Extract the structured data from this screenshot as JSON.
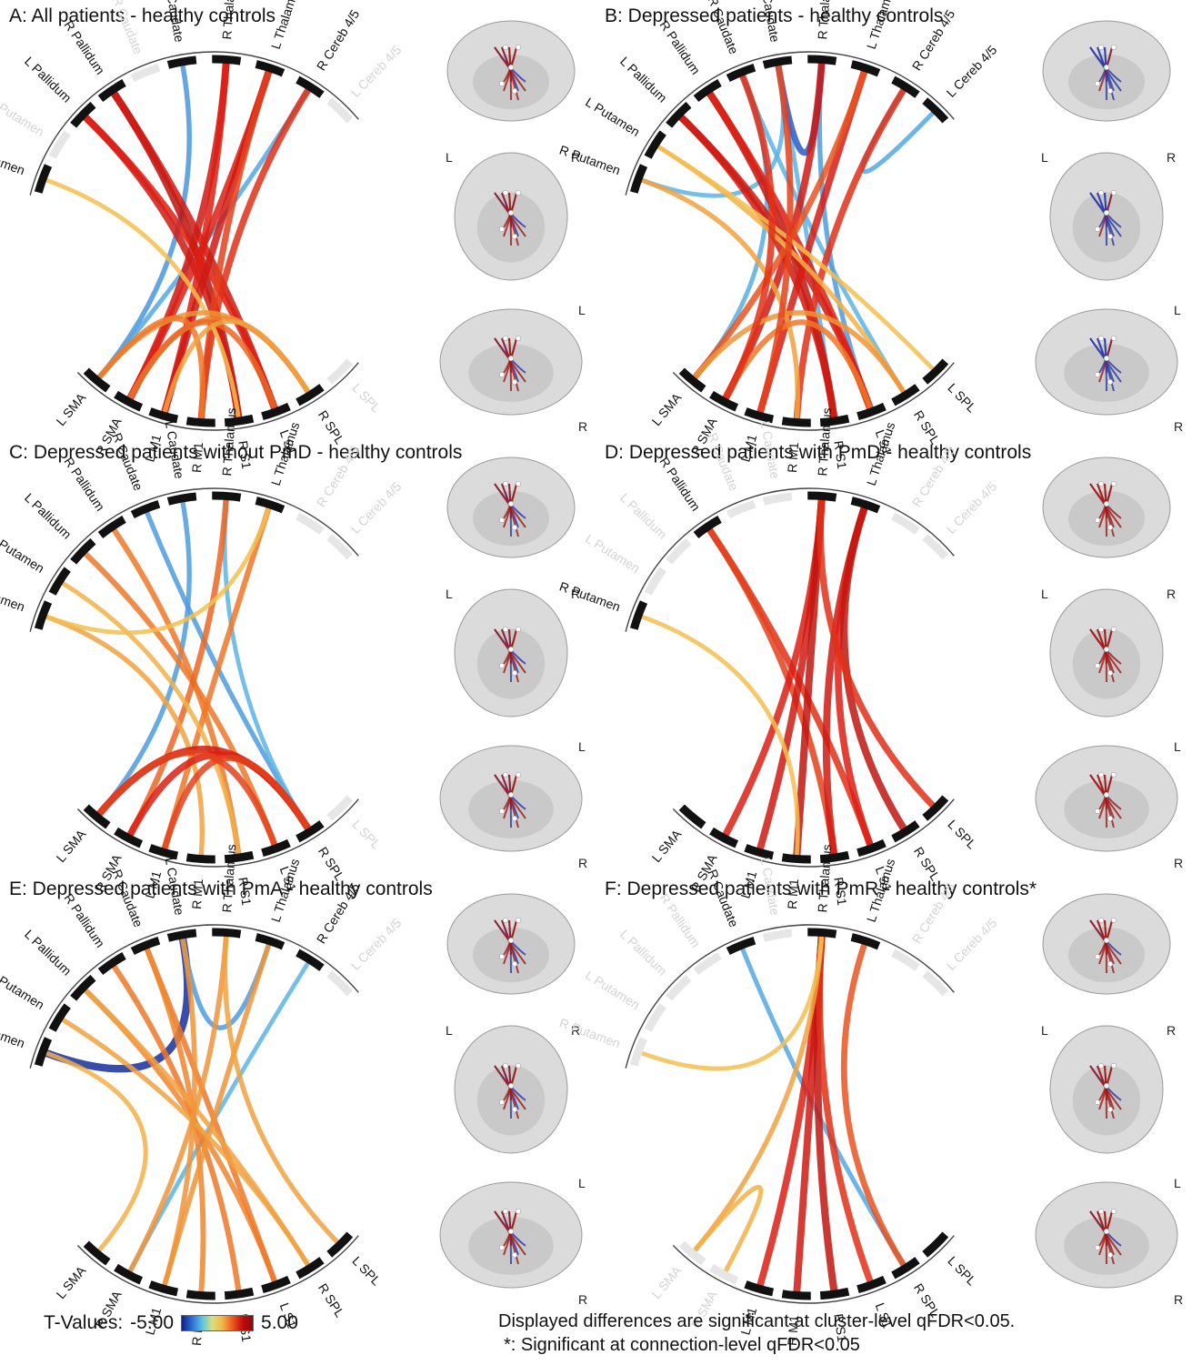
{
  "nodes": [
    "R Putamen",
    "L Putamen",
    "L Pallidum",
    "R Pallidum",
    "R Caudate",
    "L Caudate",
    "R Thalamus",
    "L Thalamus",
    "R Cereb 4/5",
    "L Cereb 4/5",
    "L SPL",
    "R SPL",
    "L S1",
    "R S1",
    "R M1",
    "L M1",
    "R SMA",
    "L SMA"
  ],
  "panels": [
    {
      "title": "A: All patients - healthy  controls",
      "faded": [
        "L Putamen",
        "R Caudate",
        "L Cereb 4/5",
        "L SPL"
      ],
      "edges": [
        [
          "L SMA",
          "L Caudate",
          -2.5
        ],
        [
          "L SMA",
          "R Cereb 4/5",
          -2.2
        ],
        [
          "R Pallidum",
          "R S1",
          4.5
        ],
        [
          "L Pallidum",
          "R S1",
          4.2
        ],
        [
          "R Pallidum",
          "L S1",
          4.2
        ],
        [
          "L Pallidum",
          "L S1",
          4.0
        ],
        [
          "R Thalamus",
          "R SMA",
          4.2
        ],
        [
          "R Thalamus",
          "L M1",
          4.0
        ],
        [
          "L Thalamus",
          "R SMA",
          4.0
        ],
        [
          "L Thalamus",
          "L M1",
          4.2
        ],
        [
          "R Cereb 4/5",
          "R M1",
          3.8
        ],
        [
          "L Thalamus",
          "R M1",
          3.6
        ],
        [
          "R Putamen",
          "R S1",
          2.0
        ],
        [
          "L SMA",
          "R SPL",
          2.6
        ],
        [
          "R SMA",
          "R SPL",
          2.8
        ],
        [
          "L SMA",
          "R M1",
          3.0
        ],
        [
          "R SMA",
          "L S1",
          3.2
        ],
        [
          "L M1",
          "R SPL",
          2.4
        ]
      ]
    },
    {
      "title": "B: Depressed patients - healthy controls",
      "faded": [],
      "edges": [
        [
          "R Caudate",
          "R SPL",
          -2.0
        ],
        [
          "L Caudate",
          "R S1",
          -2.0
        ],
        [
          "R Thalamus",
          "L S1",
          -2.4
        ],
        [
          "L Caudate",
          "R Thalamus",
          -3.5
        ],
        [
          "R Cereb 4/5",
          "L Cereb 4/5",
          -2.2
        ],
        [
          "L SMA",
          "R Caudate",
          -2.1
        ],
        [
          "R Putamen",
          "L Caudate",
          -2.0
        ],
        [
          "R Pallidum",
          "R S1",
          4.4
        ],
        [
          "L Pallidum",
          "L S1",
          4.2
        ],
        [
          "R Pallidum",
          "L S1",
          4.0
        ],
        [
          "L Pallidum",
          "R S1",
          4.2
        ],
        [
          "R Thalamus",
          "R SMA",
          4.2
        ],
        [
          "L Thalamus",
          "L M1",
          4.1
        ],
        [
          "R Cereb 4/5",
          "R M1",
          3.8
        ],
        [
          "L Thalamus",
          "L SMA",
          3.4
        ],
        [
          "R Putamen",
          "R M1",
          2.4
        ],
        [
          "L Putamen",
          "R SPL",
          2.2
        ],
        [
          "L SMA",
          "R SPL",
          2.6
        ],
        [
          "R SMA",
          "L S1",
          3.0
        ],
        [
          "L Putamen",
          "L SPL",
          2.0
        ],
        [
          "R Caudate",
          "R SMA",
          3.8
        ],
        [
          "L Caudate",
          "L M1",
          3.6
        ]
      ]
    },
    {
      "title": "C: Depressed patients without PmD - healthy controls",
      "faded": [
        "R Cereb 4/5",
        "L Cereb 4/5",
        "L SPL"
      ],
      "edges": [
        [
          "L SMA",
          "L Caudate",
          -2.4
        ],
        [
          "R Caudate",
          "R SPL",
          -2.4
        ],
        [
          "R Thalamus",
          "R SPL",
          -2.0
        ],
        [
          "R Pallidum",
          "R S1",
          3.0
        ],
        [
          "L Pallidum",
          "L S1",
          3.0
        ],
        [
          "R Thalamus",
          "R SMA",
          3.2
        ],
        [
          "L Thalamus",
          "L M1",
          3.0
        ],
        [
          "R Putamen",
          "R M1",
          2.4
        ],
        [
          "L Putamen",
          "R S1",
          2.2
        ],
        [
          "L SMA",
          "R SPL",
          4.2
        ],
        [
          "R SMA",
          "R SPL",
          4.0
        ],
        [
          "L SMA",
          "L S1",
          3.6
        ],
        [
          "L M1",
          "R SPL",
          3.6
        ],
        [
          "R Putamen",
          "L Thalamus",
          2.0
        ]
      ]
    },
    {
      "title": "D: Depressed patients with PmD - healthy controls",
      "faded": [
        "L Putamen",
        "L Pallidum",
        "R Caudate",
        "L Caudate",
        "R Cereb 4/5",
        "L Cereb 4/5"
      ],
      "edges": [
        [
          "R Pallidum",
          "L S1",
          3.8
        ],
        [
          "R Pallidum",
          "R S1",
          3.6
        ],
        [
          "R Thalamus",
          "R SMA",
          4.0
        ],
        [
          "R Thalamus",
          "L M1",
          4.2
        ],
        [
          "R Thalamus",
          "R M1",
          4.4
        ],
        [
          "L Thalamus",
          "R S1",
          4.2
        ],
        [
          "L Thalamus",
          "L S1",
          4.0
        ],
        [
          "L Thalamus",
          "R SPL",
          4.4
        ],
        [
          "R Thalamus",
          "L SPL",
          3.8
        ],
        [
          "R Putamen",
          "R M1",
          2.0
        ]
      ]
    },
    {
      "title": "E: Depressed patients with PmA - healthy controls",
      "faded": [
        "L Cereb 4/5"
      ],
      "edges": [
        [
          "R Putamen",
          "L Caudate",
          -4.6
        ],
        [
          "L Caudate",
          "L Thalamus",
          -2.4
        ],
        [
          "R Cereb 4/5",
          "R SMA",
          -2.0
        ],
        [
          "R Pallidum",
          "R S1",
          3.0
        ],
        [
          "L Pallidum",
          "L S1",
          2.8
        ],
        [
          "R Caudate",
          "L S1",
          3.0
        ],
        [
          "R Caudate",
          "R M1",
          2.8
        ],
        [
          "R Thalamus",
          "R SMA",
          2.6
        ],
        [
          "L Thalamus",
          "L M1",
          2.6
        ],
        [
          "L Putamen",
          "R SPL",
          2.4
        ],
        [
          "R Putamen",
          "L SMA",
          2.2
        ],
        [
          "L Pallidum",
          "R SPL",
          2.4
        ],
        [
          "L Caudate",
          "L M1",
          2.6
        ],
        [
          "R Thalamus",
          "L SPL",
          2.4
        ]
      ]
    },
    {
      "title": "F: Depressed patients with PmR - healthy controls*",
      "faded": [
        "R Putamen",
        "L Putamen",
        "L Pallidum",
        "R Pallidum",
        "L Caudate",
        "R Cereb 4/5",
        "L Cereb 4/5",
        "L SMA",
        "R SMA"
      ],
      "edges": [
        [
          "R Caudate",
          "R SPL",
          -2.2
        ],
        [
          "R Thalamus",
          "L M1",
          4.0
        ],
        [
          "R Thalamus",
          "R M1",
          4.2
        ],
        [
          "R Thalamus",
          "R S1",
          4.4
        ],
        [
          "R Thalamus",
          "L S1",
          3.8
        ],
        [
          "L Thalamus",
          "R SPL",
          3.4
        ],
        [
          "R Thalamus",
          "L SMA",
          2.4
        ],
        [
          "R Putamen",
          "R Thalamus",
          2.0
        ],
        [
          "L SMA",
          "R SMA",
          2.2
        ]
      ]
    }
  ],
  "footer": {
    "tvalues_label": "T-Values:",
    "tmin": "-5.00",
    "tmax": "5.00",
    "note_line1": "Displayed differences are significant at cluster-level qFDR<0.05.",
    "note_line2": "*: Significant at connection-level qFDR<0.05"
  },
  "brain_labels": {
    "left": "L",
    "right": "R"
  }
}
